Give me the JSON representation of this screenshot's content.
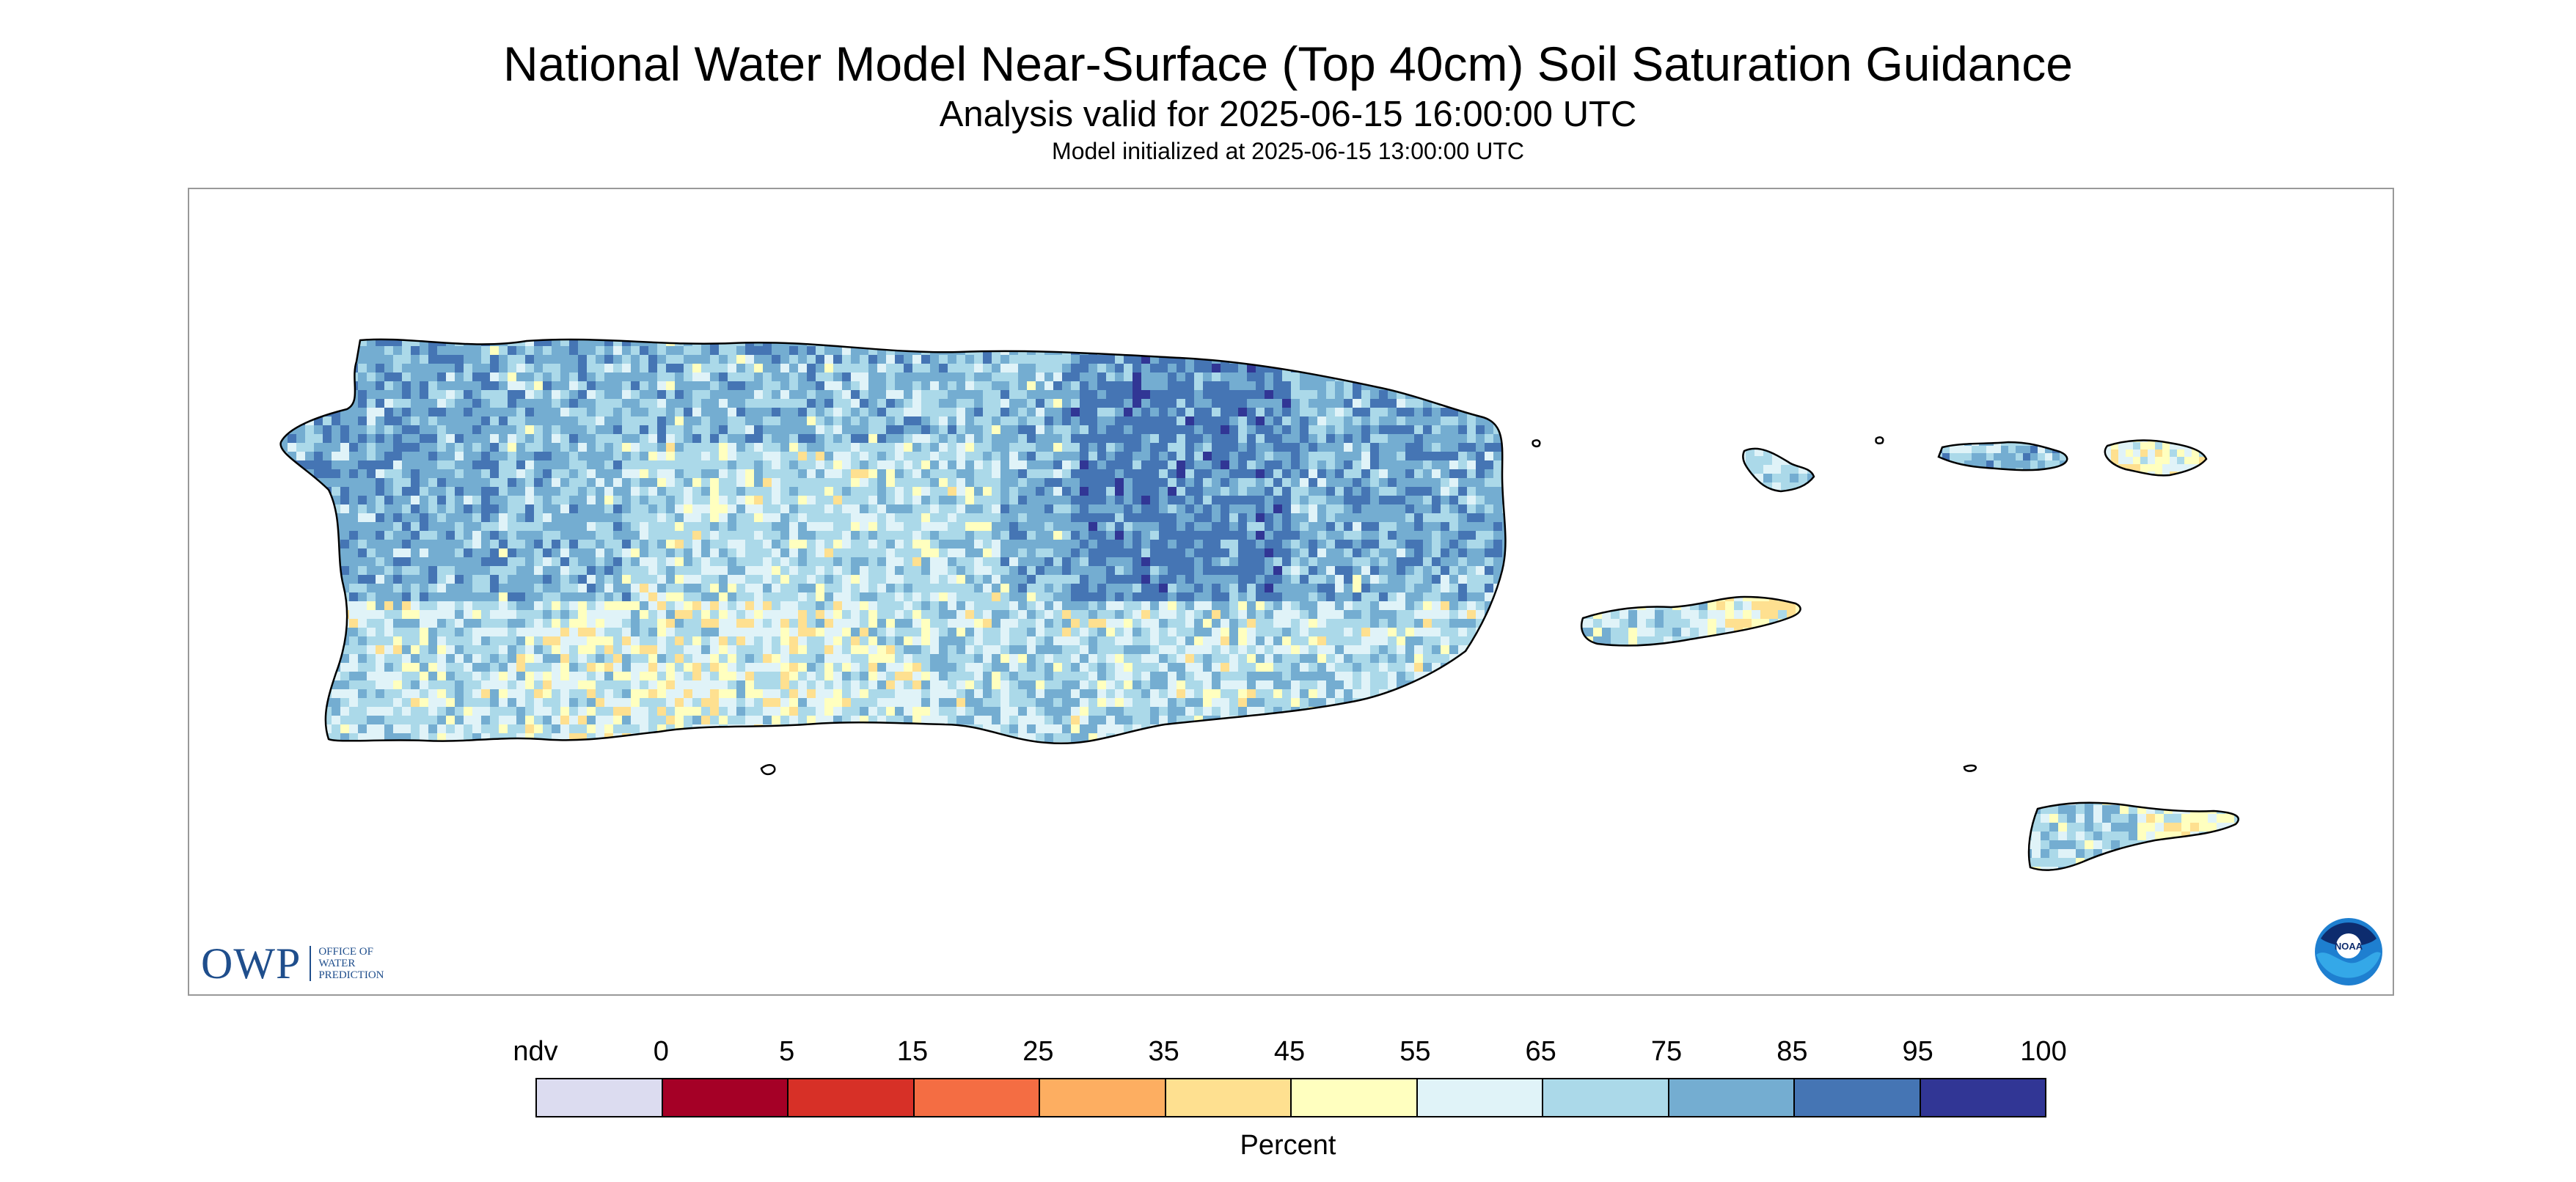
{
  "title": "National Water Model Near-Surface (Top 40cm) Soil Saturation Guidance",
  "subtitle": "Analysis valid for 2025-06-15 16:00:00 UTC",
  "init_line": "Model initialized at 2025-06-15 13:00:00 UTC",
  "logos": {
    "owp_text": "OWP",
    "owp_small_lines": [
      "OFFICE OF",
      "WATER",
      "PREDICTION"
    ],
    "noaa_text": "NOAA",
    "noaa_icon": "noaa-logo-icon"
  },
  "legend": {
    "label": "Percent",
    "tick_labels": [
      "ndv",
      "0",
      "5",
      "15",
      "25",
      "35",
      "45",
      "55",
      "65",
      "75",
      "85",
      "95",
      "100"
    ],
    "colors": [
      "#dcdcf0",
      "#a50026",
      "#d73027",
      "#f46d43",
      "#fdae61",
      "#fee090",
      "#ffffbf",
      "#e0f3f8",
      "#abd9e9",
      "#74add1",
      "#4575b4",
      "#313695"
    ]
  },
  "map": {
    "region": "Puerto Rico and U.S. Virgin Islands",
    "dominant_colors": [
      "#abd9e9",
      "#74add1",
      "#4575b4",
      "#e0f3f8",
      "#fee090"
    ]
  }
}
